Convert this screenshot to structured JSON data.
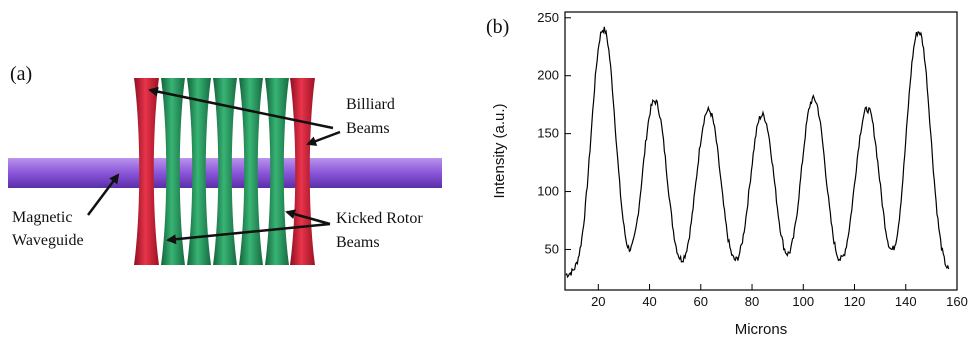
{
  "panel_a": {
    "label": "(a)",
    "annotations": {
      "billiard_line1": "Billiard",
      "billiard_line2": "Beams",
      "kicked_line1": "Kicked Rotor",
      "kicked_line2": "Beams",
      "magnetic_line1": "Magnetic",
      "magnetic_line2": "Waveguide"
    },
    "colors": {
      "waveguide": "#8a55d8",
      "billiard_beam": "#d5203a",
      "kicked_beam": "#2a9a62",
      "arrow": "#111111"
    }
  },
  "panel_b": {
    "label": "(b)"
  },
  "chart_data": {
    "type": "line",
    "title": "",
    "xlabel": "Microns",
    "ylabel": "Intensity (a.u.)",
    "xlim": [
      7,
      160
    ],
    "ylim": [
      15,
      255
    ],
    "xticks": [
      20,
      40,
      60,
      80,
      100,
      120,
      140,
      160
    ],
    "yticks": [
      50,
      100,
      150,
      200,
      250
    ],
    "xtick_labels": [
      "20",
      "40",
      "60",
      "80",
      "100",
      "120",
      "140",
      "160"
    ],
    "ytick_labels": [
      "50",
      "100",
      "150",
      "200",
      "250"
    ],
    "grid": false,
    "legend": "none",
    "line_color": "#000000",
    "peaks": [
      {
        "x": 22,
        "y": 240
      },
      {
        "x": 42,
        "y": 178
      },
      {
        "x": 63,
        "y": 170
      },
      {
        "x": 84,
        "y": 166
      },
      {
        "x": 104,
        "y": 180
      },
      {
        "x": 125,
        "y": 171
      },
      {
        "x": 145,
        "y": 238
      }
    ],
    "troughs": [
      {
        "x": 11,
        "y": 30
      },
      {
        "x": 32,
        "y": 28
      },
      {
        "x": 52,
        "y": 29
      },
      {
        "x": 73,
        "y": 28
      },
      {
        "x": 94,
        "y": 24
      },
      {
        "x": 114,
        "y": 29
      },
      {
        "x": 135,
        "y": 28
      },
      {
        "x": 155,
        "y": 28
      }
    ]
  }
}
